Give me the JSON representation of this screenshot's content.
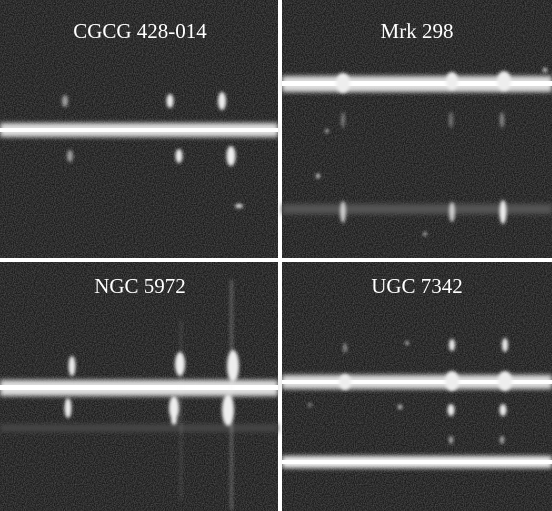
{
  "panels": [
    {
      "label": "CGCG 428-014"
    },
    {
      "label": "Mrk 298"
    },
    {
      "label": "NGC 5972"
    },
    {
      "label": "UGC 7342"
    }
  ]
}
